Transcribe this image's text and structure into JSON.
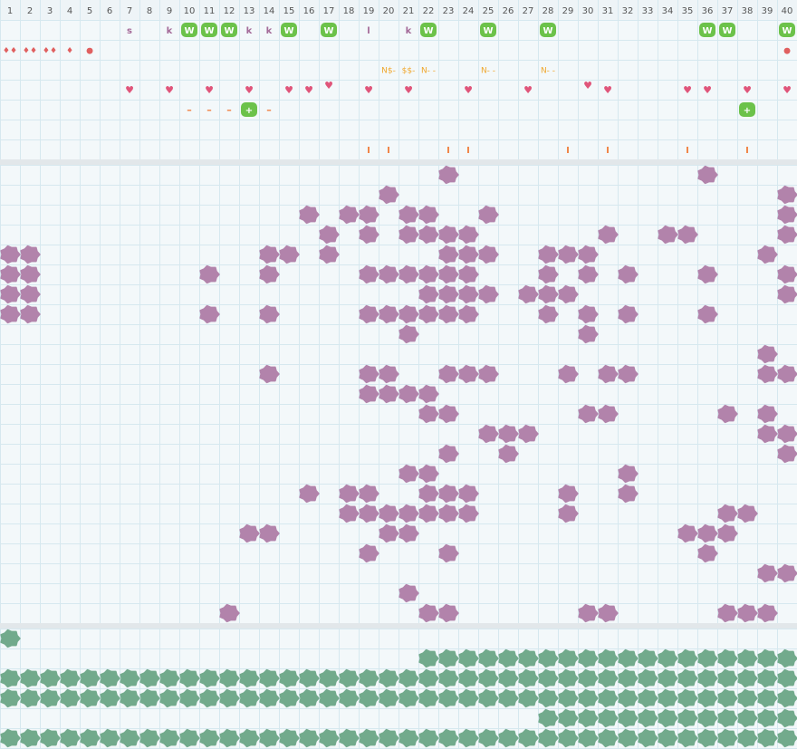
{
  "columns": [
    1,
    2,
    3,
    4,
    5,
    6,
    7,
    8,
    9,
    10,
    11,
    12,
    13,
    14,
    15,
    16,
    17,
    18,
    19,
    20,
    21,
    22,
    23,
    24,
    25,
    26,
    27,
    28,
    29,
    30,
    31,
    32,
    33,
    34,
    35,
    36,
    37,
    38,
    39,
    40
  ],
  "top": {
    "rows": [
      [
        {
          "col": 7,
          "text": "s",
          "kind": "letter"
        },
        {
          "col": 9,
          "text": "k",
          "kind": "letter"
        },
        {
          "col": 10,
          "text": "W",
          "kind": "badge"
        },
        {
          "col": 11,
          "text": "W",
          "kind": "badge"
        },
        {
          "col": 12,
          "text": "W",
          "kind": "badge"
        },
        {
          "col": 13,
          "text": "k",
          "kind": "letter"
        },
        {
          "col": 14,
          "text": "k",
          "kind": "letter"
        },
        {
          "col": 15,
          "text": "W",
          "kind": "badge"
        },
        {
          "col": 17,
          "text": "W",
          "kind": "badge"
        },
        {
          "col": 19,
          "text": "l",
          "kind": "letter"
        },
        {
          "col": 21,
          "text": "k",
          "kind": "letter"
        },
        {
          "col": 22,
          "text": "W",
          "kind": "badge"
        },
        {
          "col": 25,
          "text": "W",
          "kind": "badge"
        },
        {
          "col": 28,
          "text": "W",
          "kind": "badge"
        },
        {
          "col": 36,
          "text": "W",
          "kind": "badge"
        },
        {
          "col": 37,
          "text": "W",
          "kind": "badge"
        },
        {
          "col": 40,
          "text": "W",
          "kind": "badge"
        }
      ],
      [
        {
          "col": 1,
          "text": "♦♦",
          "kind": "drop"
        },
        {
          "col": 2,
          "text": "♦♦",
          "kind": "drop"
        },
        {
          "col": 3,
          "text": "♦♦",
          "kind": "drop"
        },
        {
          "col": 4,
          "text": "♦",
          "kind": "drop"
        },
        {
          "col": 5,
          "text": "●",
          "kind": "drop"
        },
        {
          "col": 40,
          "text": "●",
          "kind": "drop"
        }
      ],
      [
        {
          "col": 20,
          "text": "N$-",
          "kind": "note"
        },
        {
          "col": 21,
          "text": "$$-",
          "kind": "note"
        },
        {
          "col": 22,
          "text": "N- -",
          "kind": "note"
        },
        {
          "col": 25,
          "text": "N- -",
          "kind": "note"
        },
        {
          "col": 28,
          "text": "N- -",
          "kind": "note"
        }
      ],
      [
        {
          "col": 7,
          "text": "♥",
          "kind": "heart"
        },
        {
          "col": 9,
          "text": "♥",
          "kind": "heart"
        },
        {
          "col": 11,
          "text": "♥",
          "kind": "heart"
        },
        {
          "col": 13,
          "text": "♥",
          "kind": "heart"
        },
        {
          "col": 15,
          "text": "♥",
          "kind": "heart"
        },
        {
          "col": 16,
          "text": "♥",
          "kind": "heart"
        },
        {
          "col": 17,
          "text": "♥",
          "kind": "heart-raised"
        },
        {
          "col": 19,
          "text": "♥",
          "kind": "heart"
        },
        {
          "col": 21,
          "text": "♥",
          "kind": "heart"
        },
        {
          "col": 24,
          "text": "♥",
          "kind": "heart"
        },
        {
          "col": 27,
          "text": "♥",
          "kind": "heart"
        },
        {
          "col": 30,
          "text": "♥",
          "kind": "heart-raised"
        },
        {
          "col": 31,
          "text": "♥",
          "kind": "heart"
        },
        {
          "col": 35,
          "text": "♥",
          "kind": "heart"
        },
        {
          "col": 36,
          "text": "♥",
          "kind": "heart"
        },
        {
          "col": 38,
          "text": "♥",
          "kind": "heart"
        },
        {
          "col": 40,
          "text": "♥",
          "kind": "heart"
        }
      ],
      [
        {
          "col": 10,
          "text": "–",
          "kind": "dash"
        },
        {
          "col": 11,
          "text": "–",
          "kind": "dash"
        },
        {
          "col": 12,
          "text": "–",
          "kind": "dash"
        },
        {
          "col": 13,
          "text": "+",
          "kind": "plus"
        },
        {
          "col": 14,
          "text": "–",
          "kind": "dash"
        },
        {
          "col": 38,
          "text": "+",
          "kind": "plus"
        }
      ],
      [],
      [
        {
          "col": 19,
          "text": "I",
          "kind": "bar"
        },
        {
          "col": 20,
          "text": "I",
          "kind": "bar"
        },
        {
          "col": 23,
          "text": "I",
          "kind": "bar"
        },
        {
          "col": 24,
          "text": "I",
          "kind": "bar"
        },
        {
          "col": 29,
          "text": "I",
          "kind": "bar"
        },
        {
          "col": 31,
          "text": "I",
          "kind": "bar"
        },
        {
          "col": 35,
          "text": "I",
          "kind": "bar"
        },
        {
          "col": 38,
          "text": "I",
          "kind": "bar"
        }
      ]
    ]
  },
  "middle": {
    "color": "#b283ab",
    "rows": [
      [
        23,
        36
      ],
      [
        20,
        40
      ],
      [
        16,
        18,
        19,
        21,
        22,
        25,
        40
      ],
      [
        17,
        19,
        21,
        22,
        23,
        24,
        31,
        34,
        35,
        40
      ],
      [
        1,
        2,
        14,
        15,
        17,
        23,
        24,
        25,
        28,
        29,
        30,
        39
      ],
      [
        1,
        2,
        11,
        14,
        19,
        20,
        21,
        22,
        23,
        24,
        28,
        30,
        32,
        36,
        40
      ],
      [
        1,
        2,
        22,
        23,
        24,
        25,
        27,
        28,
        29,
        40
      ],
      [
        1,
        2,
        11,
        14,
        19,
        20,
        21,
        22,
        23,
        24,
        28,
        30,
        32,
        36
      ],
      [
        21,
        30
      ],
      [
        39
      ],
      [
        14,
        19,
        20,
        23,
        24,
        25,
        29,
        31,
        32,
        39,
        40
      ],
      [
        19,
        20,
        21,
        22
      ],
      [
        22,
        23,
        30,
        31,
        37,
        39
      ],
      [
        25,
        26,
        27,
        39,
        40
      ],
      [
        23,
        26,
        40
      ],
      [
        21,
        22,
        32
      ],
      [
        16,
        18,
        19,
        22,
        23,
        24,
        29,
        32
      ],
      [
        18,
        19,
        20,
        21,
        22,
        23,
        24,
        29,
        37,
        38
      ],
      [
        13,
        14,
        20,
        21,
        35,
        36,
        37
      ],
      [
        19,
        23,
        36
      ],
      [
        39,
        40
      ],
      [
        21
      ],
      [
        12,
        22,
        23,
        30,
        31,
        37,
        38,
        39
      ]
    ]
  },
  "bottom": {
    "color": "#72aa8c",
    "rows": [
      [
        1
      ],
      [
        22,
        23,
        24,
        25,
        26,
        27,
        28,
        29,
        30,
        31,
        32,
        33,
        34,
        35,
        36,
        37,
        38,
        39,
        40
      ],
      [
        1,
        2,
        3,
        4,
        5,
        6,
        7,
        8,
        9,
        10,
        11,
        12,
        13,
        14,
        15,
        16,
        17,
        18,
        19,
        20,
        21,
        22,
        23,
        24,
        25,
        26,
        27,
        28,
        29,
        30,
        31,
        32,
        33,
        34,
        35,
        36,
        37,
        38,
        39,
        40
      ],
      [
        1,
        2,
        3,
        4,
        5,
        6,
        7,
        8,
        9,
        10,
        11,
        12,
        13,
        14,
        15,
        16,
        17,
        18,
        19,
        20,
        21,
        22,
        23,
        24,
        25,
        26,
        27,
        28,
        29,
        30,
        31,
        32,
        33,
        34,
        35,
        36,
        37,
        38,
        39,
        40
      ],
      [
        28,
        29,
        30,
        31,
        32,
        33,
        34,
        35,
        36,
        37,
        38,
        39,
        40
      ],
      [
        1,
        2,
        3,
        4,
        5,
        6,
        7,
        8,
        9,
        10,
        11,
        12,
        13,
        14,
        15,
        16,
        17,
        18,
        19,
        20,
        21,
        22,
        23,
        24,
        25,
        26,
        27,
        28,
        29,
        30,
        31,
        32,
        33,
        34,
        35,
        36,
        37,
        38,
        39,
        40
      ]
    ]
  }
}
